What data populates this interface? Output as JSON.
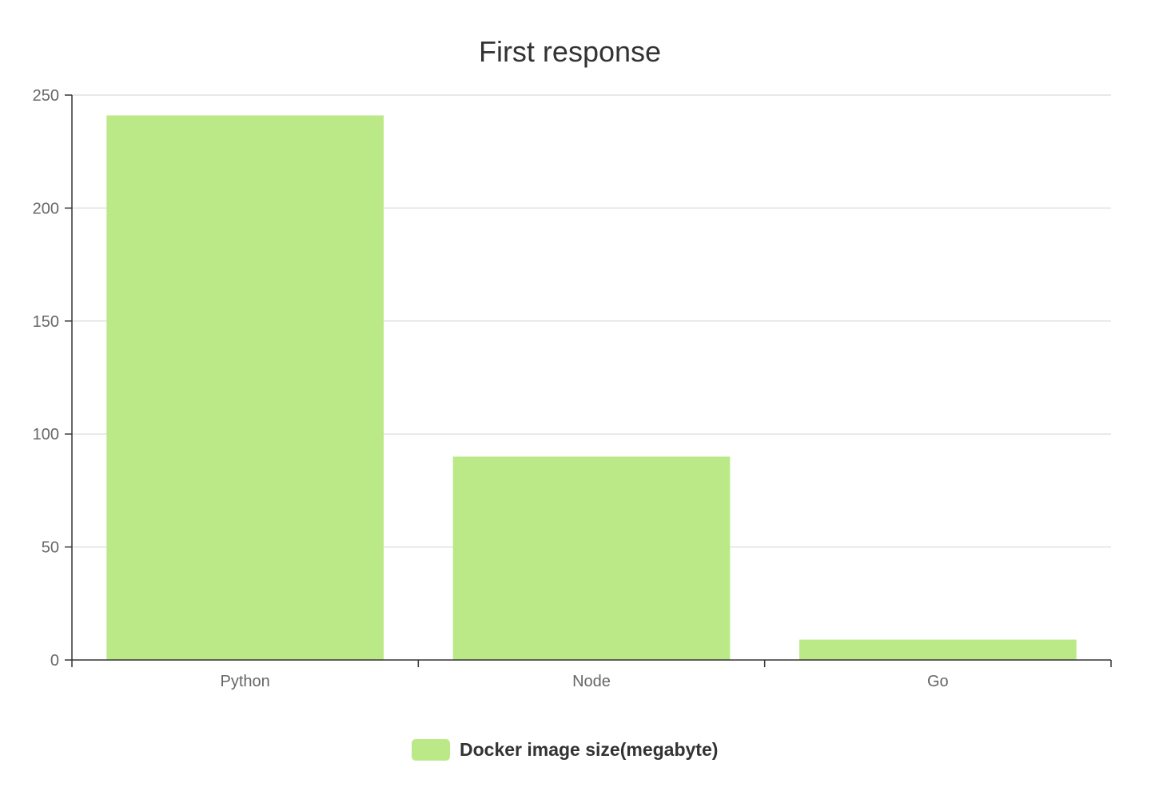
{
  "chart_data": {
    "type": "bar",
    "title": "First response",
    "categories": [
      "Python",
      "Node",
      "Go"
    ],
    "series": [
      {
        "name": "Docker image size(megabyte)",
        "values": [
          241,
          90,
          9
        ],
        "color": "#bbe988"
      }
    ],
    "xlabel": "",
    "ylabel": "",
    "ylim": [
      0,
      250
    ],
    "yticks": [
      0,
      50,
      100,
      150,
      200,
      250
    ],
    "grid": true,
    "legend_position": "bottom-center"
  }
}
